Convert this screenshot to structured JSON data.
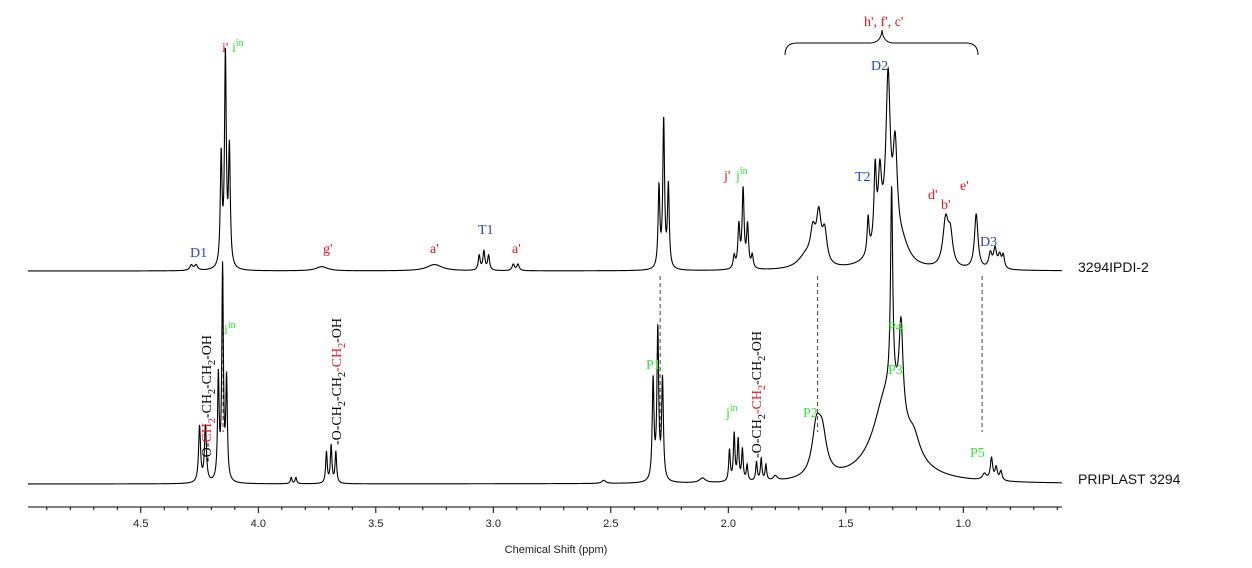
{
  "chart_data": {
    "type": "line",
    "xlabel": "Chemical Shift (ppm)",
    "xlim": [
      4.98,
      0.58
    ],
    "x_reversed": true,
    "x_ticks": [
      4.5,
      4.0,
      3.5,
      3.0,
      2.5,
      2.0,
      1.5,
      1.0
    ],
    "x_tick_labels": [
      "4.5",
      "4.0",
      "3.5",
      "3.0",
      "2.5",
      "2.0",
      "1.5",
      "1.0"
    ],
    "grid": false,
    "colors": {
      "line": "#000000",
      "red": "#e8141e",
      "green": "#32e632",
      "blue": "#2a3fd6",
      "dash": "#444444"
    },
    "series": [
      {
        "name": "3294IPDI-2",
        "baseline": 0.02,
        "peaks": [
          {
            "x": 4.285,
            "h": 0.025,
            "w": 0.008
          },
          {
            "x": 4.265,
            "h": 0.025,
            "w": 0.008
          },
          {
            "x": 4.158,
            "h": 0.52,
            "w": 0.0045
          },
          {
            "x": 4.14,
            "h": 1.0,
            "w": 0.0045
          },
          {
            "x": 4.123,
            "h": 0.55,
            "w": 0.0045
          },
          {
            "x": 3.73,
            "h": 0.02,
            "w": 0.03
          },
          {
            "x": 3.25,
            "h": 0.03,
            "w": 0.04
          },
          {
            "x": 3.06,
            "h": 0.07,
            "w": 0.005
          },
          {
            "x": 3.04,
            "h": 0.09,
            "w": 0.005
          },
          {
            "x": 3.02,
            "h": 0.07,
            "w": 0.005
          },
          {
            "x": 2.915,
            "h": 0.03,
            "w": 0.006
          },
          {
            "x": 2.895,
            "h": 0.03,
            "w": 0.006
          },
          {
            "x": 2.295,
            "h": 0.38,
            "w": 0.0045
          },
          {
            "x": 2.275,
            "h": 0.7,
            "w": 0.0045
          },
          {
            "x": 2.255,
            "h": 0.39,
            "w": 0.0045
          },
          {
            "x": 1.975,
            "h": 0.06,
            "w": 0.005
          },
          {
            "x": 1.955,
            "h": 0.2,
            "w": 0.005
          },
          {
            "x": 1.937,
            "h": 0.37,
            "w": 0.005
          },
          {
            "x": 1.918,
            "h": 0.2,
            "w": 0.005
          },
          {
            "x": 1.898,
            "h": 0.06,
            "w": 0.005
          },
          {
            "x": 1.67,
            "h": 0.06,
            "w": 0.04
          },
          {
            "x": 1.64,
            "h": 0.14,
            "w": 0.013
          },
          {
            "x": 1.615,
            "h": 0.22,
            "w": 0.012
          },
          {
            "x": 1.59,
            "h": 0.15,
            "w": 0.012
          },
          {
            "x": 1.405,
            "h": 0.17,
            "w": 0.005
          },
          {
            "x": 1.375,
            "h": 0.35,
            "w": 0.006
          },
          {
            "x": 1.355,
            "h": 0.28,
            "w": 0.008
          },
          {
            "x": 1.34,
            "h": 0.14,
            "w": 0.05
          },
          {
            "x": 1.32,
            "h": 0.75,
            "w": 0.011
          },
          {
            "x": 1.29,
            "h": 0.45,
            "w": 0.011
          },
          {
            "x": 1.26,
            "h": 0.08,
            "w": 0.035
          },
          {
            "x": 1.075,
            "h": 0.22,
            "w": 0.014
          },
          {
            "x": 1.055,
            "h": 0.14,
            "w": 0.012
          },
          {
            "x": 0.945,
            "h": 0.26,
            "w": 0.009
          },
          {
            "x": 0.885,
            "h": 0.07,
            "w": 0.008
          },
          {
            "x": 0.865,
            "h": 0.09,
            "w": 0.008
          },
          {
            "x": 0.845,
            "h": 0.06,
            "w": 0.008
          },
          {
            "x": 0.83,
            "h": 0.06,
            "w": 0.006
          }
        ]
      },
      {
        "name": "PRIPLAST 3294",
        "baseline": 0.02,
        "peaks": [
          {
            "x": 4.25,
            "h": 0.18,
            "w": 0.005
          },
          {
            "x": 4.225,
            "h": 0.18,
            "w": 0.005
          },
          {
            "x": 4.17,
            "h": 0.33,
            "w": 0.004
          },
          {
            "x": 4.152,
            "h": 0.68,
            "w": 0.004
          },
          {
            "x": 4.135,
            "h": 0.32,
            "w": 0.004
          },
          {
            "x": 3.86,
            "h": 0.02,
            "w": 0.004
          },
          {
            "x": 3.84,
            "h": 0.02,
            "w": 0.004
          },
          {
            "x": 3.71,
            "h": 0.1,
            "w": 0.004
          },
          {
            "x": 3.69,
            "h": 0.12,
            "w": 0.004
          },
          {
            "x": 3.67,
            "h": 0.1,
            "w": 0.004
          },
          {
            "x": 2.53,
            "h": 0.01,
            "w": 0.01
          },
          {
            "x": 2.32,
            "h": 0.32,
            "w": 0.0045
          },
          {
            "x": 2.3,
            "h": 0.48,
            "w": 0.0045
          },
          {
            "x": 2.28,
            "h": 0.32,
            "w": 0.0045
          },
          {
            "x": 2.11,
            "h": 0.015,
            "w": 0.015
          },
          {
            "x": 1.995,
            "h": 0.1,
            "w": 0.004
          },
          {
            "x": 1.975,
            "h": 0.15,
            "w": 0.004
          },
          {
            "x": 1.958,
            "h": 0.13,
            "w": 0.004
          },
          {
            "x": 1.94,
            "h": 0.1,
            "w": 0.004
          },
          {
            "x": 1.92,
            "h": 0.05,
            "w": 0.004
          },
          {
            "x": 1.88,
            "h": 0.06,
            "w": 0.004
          },
          {
            "x": 1.86,
            "h": 0.07,
            "w": 0.004
          },
          {
            "x": 1.84,
            "h": 0.05,
            "w": 0.004
          },
          {
            "x": 1.8,
            "h": 0.015,
            "w": 0.01
          },
          {
            "x": 1.625,
            "h": 0.15,
            "w": 0.022
          },
          {
            "x": 1.6,
            "h": 0.12,
            "w": 0.022
          },
          {
            "x": 1.35,
            "h": 0.03,
            "w": 0.04
          },
          {
            "x": 1.31,
            "h": 0.28,
            "w": 0.08
          },
          {
            "x": 1.305,
            "h": 0.64,
            "w": 0.0055
          },
          {
            "x": 1.265,
            "h": 0.29,
            "w": 0.01
          },
          {
            "x": 1.21,
            "h": 0.06,
            "w": 0.03
          },
          {
            "x": 0.88,
            "h": 0.07,
            "w": 0.006
          },
          {
            "x": 0.86,
            "h": 0.04,
            "w": 0.006
          },
          {
            "x": 0.84,
            "h": 0.03,
            "w": 0.006
          },
          {
            "x": 0.91,
            "h": 0.02,
            "w": 0.01
          }
        ]
      }
    ],
    "dashed_guides_ppm": [
      4.15,
      2.29,
      1.62,
      0.92
    ],
    "labels_top": [
      {
        "id": "iprime",
        "text": "i'",
        "color": "red"
      },
      {
        "id": "iin_top",
        "text": "i",
        "sup": "in",
        "color": "green"
      },
      {
        "id": "D1",
        "text": "D1",
        "color": "blue"
      },
      {
        "id": "gprime",
        "text": "g'",
        "color": "red"
      },
      {
        "id": "aprime1",
        "text": "a'",
        "color": "red"
      },
      {
        "id": "T1",
        "text": "T1",
        "color": "blue"
      },
      {
        "id": "aprime2",
        "text": "a'",
        "color": "red"
      },
      {
        "id": "jprime",
        "text": "j'",
        "color": "red"
      },
      {
        "id": "jin_top",
        "text": "j",
        "sup": "in",
        "color": "green"
      },
      {
        "id": "hfe",
        "text": "h', f', c'",
        "color": "red"
      },
      {
        "id": "D2",
        "text": "D2",
        "color": "blue"
      },
      {
        "id": "T2",
        "text": "T2",
        "color": "blue"
      },
      {
        "id": "dprime",
        "text": "d'",
        "color": "red"
      },
      {
        "id": "bprime",
        "text": "b'",
        "color": "red"
      },
      {
        "id": "eprime",
        "text": "e'",
        "color": "red"
      },
      {
        "id": "D3",
        "text": "D3",
        "color": "blue"
      }
    ],
    "labels_bottom": [
      {
        "id": "iin_bot",
        "text": "i",
        "sup": "in",
        "color": "green"
      },
      {
        "id": "P1",
        "text": "P1",
        "color": "green"
      },
      {
        "id": "jin_bot",
        "text": "j",
        "sup": "in",
        "color": "green"
      },
      {
        "id": "P2",
        "text": "P2",
        "color": "green"
      },
      {
        "id": "P4",
        "text": "P4",
        "color": "green"
      },
      {
        "id": "P3",
        "text": "P3",
        "color": "green"
      },
      {
        "id": "P5",
        "text": "P5",
        "color": "green"
      }
    ],
    "rotated_formula_labels": [
      {
        "id": "formula1",
        "parts": [
          "-O-",
          "CH",
          "2",
          "-CH",
          "2",
          "-CH",
          "2",
          "-OH"
        ],
        "highlight": [
          1,
          2
        ]
      },
      {
        "id": "formula2",
        "parts": [
          "-O-",
          "CH",
          "2",
          "-CH",
          "2",
          "-CH",
          "2",
          "-OH"
        ],
        "highlight": [
          5,
          6
        ]
      },
      {
        "id": "formula3",
        "parts": [
          "-O-",
          "CH",
          "2",
          "-CH",
          "2",
          "-CH",
          "2",
          "-OH"
        ],
        "highlight": [
          3,
          4
        ]
      }
    ]
  }
}
